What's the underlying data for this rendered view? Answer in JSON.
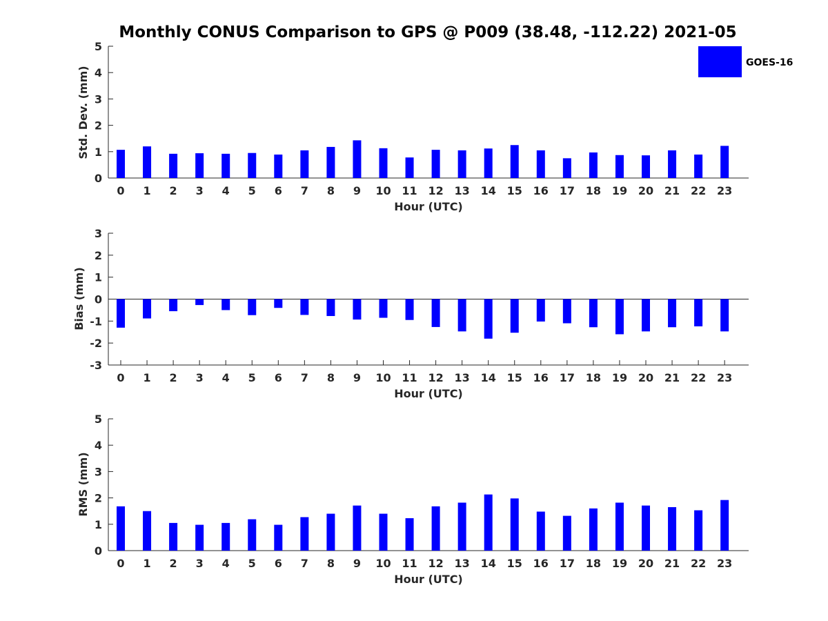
{
  "chart_data": {
    "title": "Monthly CONUS Comparison to GPS @ P009 (38.48, -112.22) 2021-05",
    "legend": {
      "label": "GOES-16",
      "placement": "top-right",
      "color": "#0000ff"
    },
    "bar_color": "#0000ff",
    "panels": [
      {
        "type": "bar",
        "ylabel": "Std. Dev. (mm)",
        "xlabel": "Hour (UTC)",
        "ylim": [
          0,
          5
        ],
        "yticks": [
          0,
          1,
          2,
          3,
          4,
          5
        ],
        "categories": [
          "0",
          "1",
          "2",
          "3",
          "4",
          "5",
          "6",
          "7",
          "8",
          "9",
          "10",
          "11",
          "12",
          "13",
          "14",
          "15",
          "16",
          "17",
          "18",
          "19",
          "20",
          "21",
          "22",
          "23"
        ],
        "values": [
          1.07,
          1.2,
          0.92,
          0.94,
          0.92,
          0.95,
          0.89,
          1.05,
          1.18,
          1.43,
          1.13,
          0.78,
          1.07,
          1.05,
          1.12,
          1.25,
          1.05,
          0.75,
          0.97,
          0.87,
          0.86,
          1.05,
          0.89,
          1.22
        ]
      },
      {
        "type": "bar",
        "ylabel": "Bias (mm)",
        "xlabel": "Hour (UTC)",
        "ylim": [
          -3,
          3
        ],
        "yticks": [
          -3,
          -2,
          -1,
          0,
          1,
          2,
          3
        ],
        "zero_line": true,
        "categories": [
          "0",
          "1",
          "2",
          "3",
          "4",
          "5",
          "6",
          "7",
          "8",
          "9",
          "10",
          "11",
          "12",
          "13",
          "14",
          "15",
          "16",
          "17",
          "18",
          "19",
          "20",
          "21",
          "22",
          "23"
        ],
        "values": [
          -1.3,
          -0.88,
          -0.55,
          -0.27,
          -0.5,
          -0.73,
          -0.4,
          -0.72,
          -0.77,
          -0.93,
          -0.85,
          -0.95,
          -1.27,
          -1.47,
          -1.8,
          -1.53,
          -1.02,
          -1.1,
          -1.28,
          -1.6,
          -1.47,
          -1.28,
          -1.24,
          -1.47
        ]
      },
      {
        "type": "bar",
        "ylabel": "RMS (mm)",
        "xlabel": "Hour (UTC)",
        "ylim": [
          0,
          5
        ],
        "yticks": [
          0,
          1,
          2,
          3,
          4,
          5
        ],
        "categories": [
          "0",
          "1",
          "2",
          "3",
          "4",
          "5",
          "6",
          "7",
          "8",
          "9",
          "10",
          "11",
          "12",
          "13",
          "14",
          "15",
          "16",
          "17",
          "18",
          "19",
          "20",
          "21",
          "22",
          "23"
        ],
        "values": [
          1.68,
          1.5,
          1.05,
          0.98,
          1.05,
          1.19,
          0.98,
          1.27,
          1.4,
          1.71,
          1.4,
          1.23,
          1.68,
          1.82,
          2.13,
          1.98,
          1.48,
          1.32,
          1.6,
          1.82,
          1.71,
          1.65,
          1.53,
          1.92
        ]
      }
    ]
  }
}
